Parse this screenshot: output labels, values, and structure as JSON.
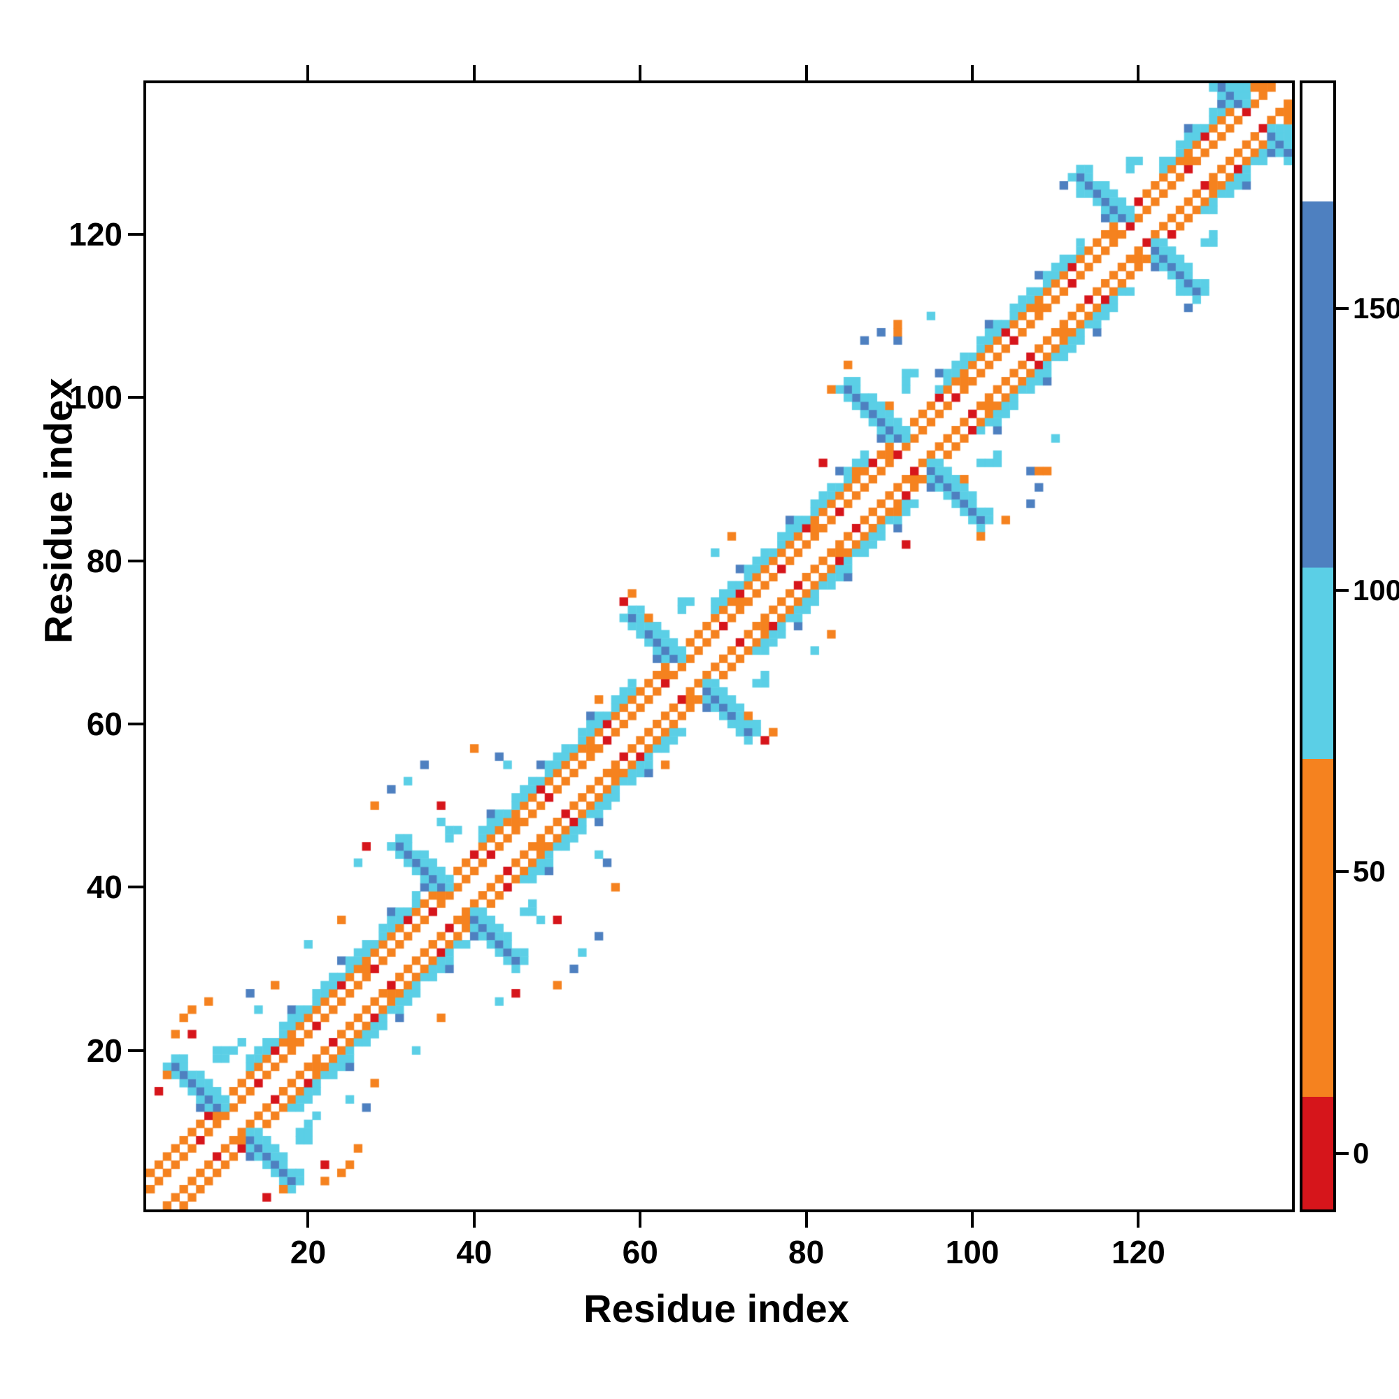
{
  "figure": {
    "xlabel": "Residue index",
    "ylabel": "Residue index"
  },
  "chart_data": {
    "type": "heatmap",
    "title": "",
    "xlabel": "Residue index",
    "ylabel": "Residue index",
    "n_residues": 138,
    "axis_range": [
      1,
      138
    ],
    "x_ticks": [
      20,
      40,
      60,
      80,
      100,
      120
    ],
    "y_ticks": [
      20,
      40,
      60,
      80,
      100,
      120
    ],
    "value_domain": [
      -10,
      190
    ],
    "grid": false,
    "legend": "colorbar-right",
    "colorbar": {
      "ticks": [
        0,
        50,
        100,
        150
      ],
      "stops": [
        [
          0.0,
          "#d6151b"
        ],
        [
          0.1,
          "#d6151b"
        ],
        [
          0.1,
          "#f5821f"
        ],
        [
          0.4,
          "#f5821f"
        ],
        [
          0.4,
          "#5bcfe6"
        ],
        [
          0.57,
          "#5bcfe6"
        ],
        [
          0.57,
          "#4e80c0"
        ],
        [
          0.895,
          "#4e80c0"
        ],
        [
          0.895,
          "#ffffff"
        ],
        [
          1.0,
          "#ffffff"
        ]
      ]
    },
    "colormap": {
      "thresholds": [
        10,
        70,
        104,
        169
      ],
      "colors": [
        "#d6151b",
        "#f5821f",
        "#5bcfe6",
        "#4e80c0",
        "#ffffff"
      ]
    },
    "features": {
      "description": "symmetric residue-residue contact map: orange/red stripes parallel to the main diagonal, cyan outer stripes, and blue antiparallel (hairpin) bowtie clusters crossing the diagonal",
      "diagonal_stripes": {
        "offsets_orange": [
          2,
          4
        ],
        "offsets_cyan": [
          5,
          6
        ],
        "orange_value": 42,
        "orange_alt_value": 30,
        "red_value": 0,
        "cyan_value": 92,
        "blue_fleck_value": 132
      },
      "cyan_segments": [
        [
          14,
          33
        ],
        [
          42,
          59
        ],
        [
          70,
          87
        ],
        [
          97,
          113
        ],
        [
          124,
          137
        ]
      ],
      "hairpins": [
        {
          "center": 11,
          "span": 7
        },
        {
          "center": 38,
          "span": 7
        },
        {
          "center": 66,
          "span": 7
        },
        {
          "center": 93,
          "span": 8
        },
        {
          "center": 120,
          "span": 7
        },
        {
          "center": 134,
          "span": 5
        }
      ],
      "hairpin_values": {
        "core": 135,
        "halo": 95,
        "tip": 95,
        "arm": 92
      },
      "sparse_contacts": [
        [
          2,
          15,
          5
        ],
        [
          3,
          17,
          40
        ],
        [
          4,
          22,
          40
        ],
        [
          5,
          24,
          40
        ],
        [
          6,
          22,
          5
        ],
        [
          6,
          25,
          45
        ],
        [
          8,
          26,
          45
        ],
        [
          9,
          19,
          95
        ],
        [
          9,
          20,
          95
        ],
        [
          12,
          21,
          90
        ],
        [
          13,
          27,
          130
        ],
        [
          14,
          25,
          95
        ],
        [
          16,
          28,
          40
        ],
        [
          20,
          33,
          90
        ],
        [
          24,
          36,
          40
        ],
        [
          26,
          43,
          90
        ],
        [
          27,
          45,
          5
        ],
        [
          28,
          50,
          40
        ],
        [
          30,
          52,
          130
        ],
        [
          32,
          53,
          95
        ],
        [
          34,
          55,
          130
        ],
        [
          36,
          50,
          5
        ],
        [
          36,
          48,
          90
        ],
        [
          37,
          46,
          95
        ],
        [
          37,
          47,
          95
        ],
        [
          40,
          57,
          40
        ],
        [
          43,
          56,
          130
        ],
        [
          44,
          55,
          95
        ],
        [
          55,
          63,
          40
        ],
        [
          58,
          75,
          5
        ],
        [
          59,
          76,
          40
        ],
        [
          60,
          72,
          90
        ],
        [
          61,
          73,
          45
        ],
        [
          65,
          74,
          95
        ],
        [
          65,
          75,
          95
        ],
        [
          69,
          81,
          95
        ],
        [
          71,
          83,
          40
        ],
        [
          82,
          92,
          5
        ],
        [
          83,
          101,
          40
        ],
        [
          85,
          104,
          45
        ],
        [
          86,
          91,
          45
        ],
        [
          86,
          99,
          90
        ],
        [
          87,
          107,
          130
        ],
        [
          89,
          108,
          130
        ],
        [
          90,
          99,
          40
        ],
        [
          91,
          107,
          130
        ],
        [
          91,
          108,
          45
        ],
        [
          91,
          109,
          40
        ],
        [
          92,
          101,
          95
        ],
        [
          92,
          102,
          95
        ],
        [
          95,
          110,
          95
        ],
        [
          111,
          126,
          130
        ],
        [
          113,
          125,
          95
        ],
        [
          114,
          127,
          90
        ],
        [
          119,
          128,
          95
        ]
      ]
    }
  }
}
